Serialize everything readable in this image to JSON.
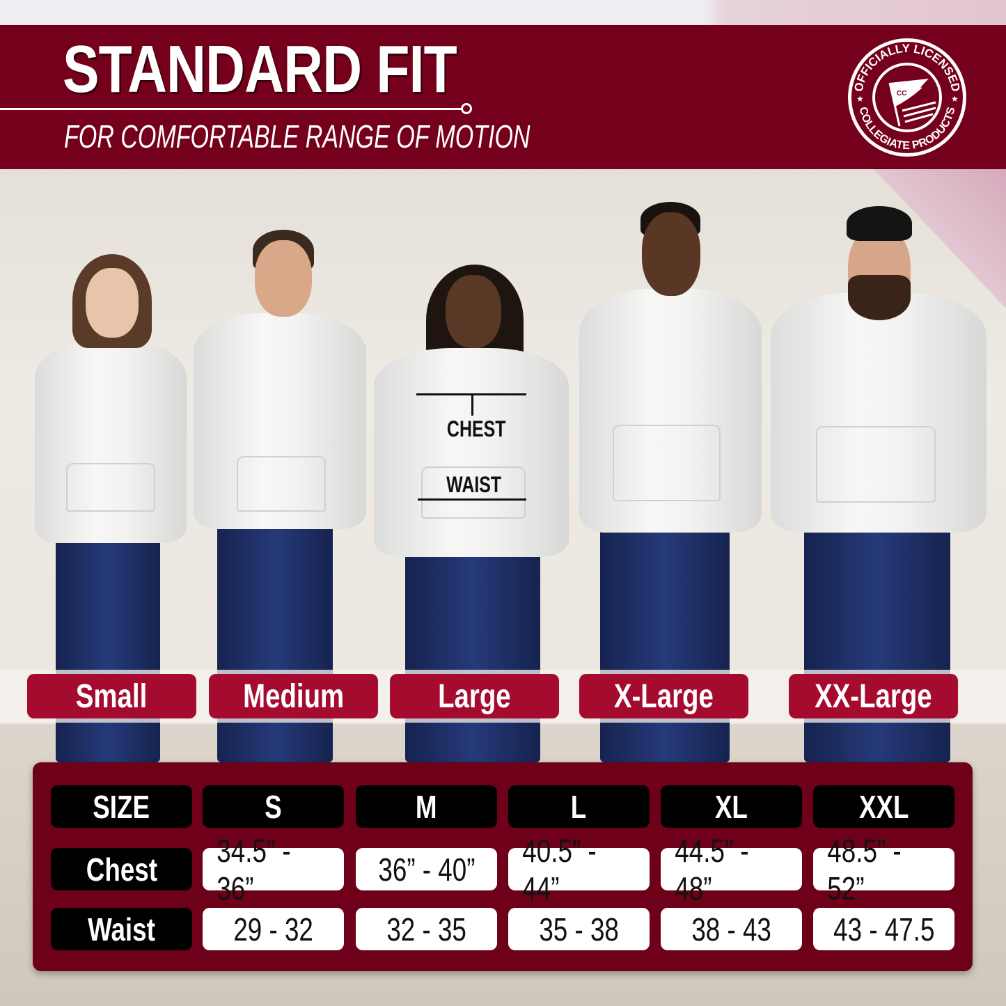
{
  "header": {
    "title": "STANDARD FIT",
    "subtitle": "FOR COMFORTABLE RANGE OF MOTION"
  },
  "logo": {
    "top_text": "OFFICIALLY LICENSED",
    "bottom_text": "COLLEGIATE PRODUCTS",
    "flag_text": "CC"
  },
  "annotations": {
    "chest": "CHEST",
    "waist": "WAIST"
  },
  "size_labels": [
    "Small",
    "Medium",
    "Large",
    "X-Large",
    "XX-Large"
  ],
  "table": {
    "headers": [
      "SIZE",
      "S",
      "M",
      "L",
      "XL",
      "XXL"
    ],
    "rows": [
      {
        "label": "Chest",
        "values": [
          "34.5” - 36”",
          "36” - 40”",
          "40.5” - 44”",
          "44.5” - 48”",
          "48.5” - 52”"
        ]
      },
      {
        "label": "Waist",
        "values": [
          "29 - 32",
          "32 - 35",
          "35 - 38",
          "38 - 43",
          "43 - 47.5"
        ]
      }
    ]
  },
  "colors": {
    "banner": "#75001b",
    "label": "#a50a2f",
    "panel": "#6e0019",
    "header_cell": "#000000",
    "value_cell": "#ffffff"
  }
}
